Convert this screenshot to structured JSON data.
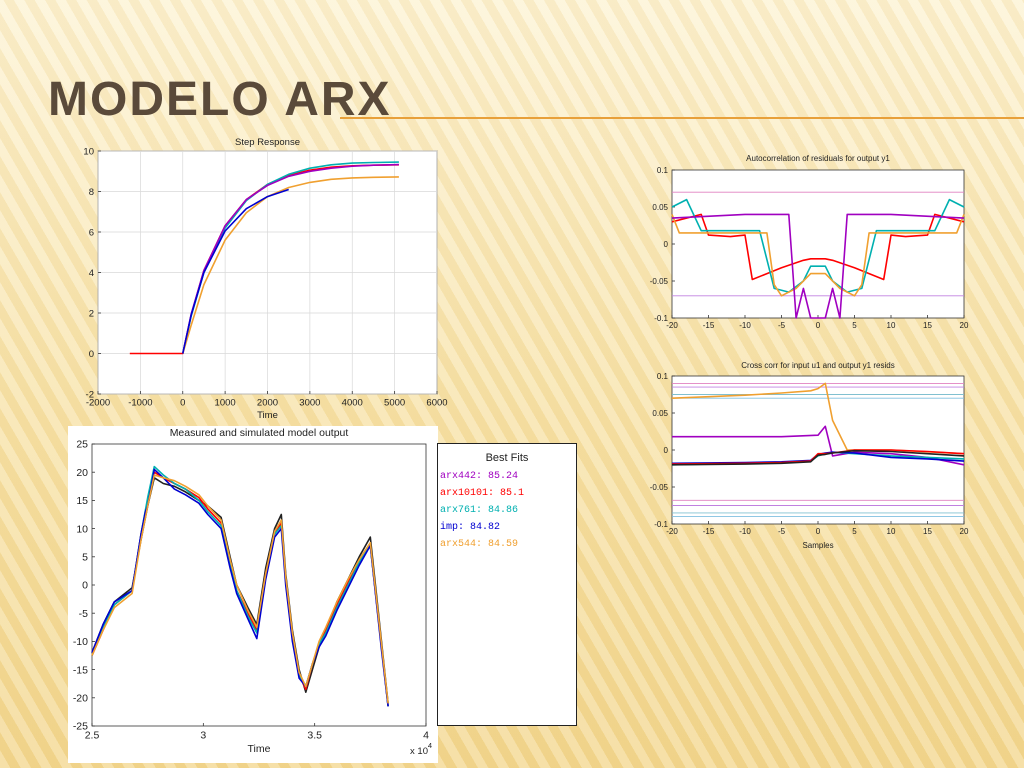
{
  "slide": {
    "title": "MODELO ARX",
    "accent": "#e8a03a"
  },
  "chart_data": [
    {
      "id": "step",
      "type": "line",
      "title": "Step Response",
      "xlabel": "Time",
      "ylabel": "",
      "xlim": [
        -2000,
        6000
      ],
      "ylim": [
        -2,
        10
      ],
      "xticks": [
        -2000,
        -1000,
        0,
        1000,
        2000,
        3000,
        4000,
        5000,
        6000
      ],
      "yticks": [
        -2,
        0,
        2,
        4,
        6,
        8,
        10
      ],
      "grid": true,
      "series": [
        {
          "color": "#ff0000",
          "x": [
            -1250,
            0,
            200,
            500,
            1000,
            1500,
            2000,
            2500,
            3000,
            3500,
            4000,
            4500,
            5100
          ],
          "y": [
            0,
            0,
            1.9,
            4.1,
            6.3,
            7.6,
            8.35,
            8.8,
            9.05,
            9.2,
            9.27,
            9.3,
            9.32
          ]
        },
        {
          "color": "#00b0b0",
          "x": [
            0,
            200,
            500,
            1000,
            1500,
            2000,
            2500,
            3000,
            3500,
            4000,
            4500,
            5100
          ],
          "y": [
            0,
            1.85,
            4.0,
            6.2,
            7.55,
            8.35,
            8.85,
            9.15,
            9.32,
            9.4,
            9.43,
            9.45
          ]
        },
        {
          "color": "#a000c0",
          "x": [
            0,
            200,
            500,
            1000,
            1500,
            2000,
            2500,
            3000,
            3500,
            4000,
            4500,
            5100
          ],
          "y": [
            0,
            1.95,
            4.1,
            6.3,
            7.6,
            8.3,
            8.75,
            9.0,
            9.15,
            9.25,
            9.3,
            9.33
          ]
        },
        {
          "color": "#f0a030",
          "x": [
            0,
            200,
            500,
            1000,
            1500,
            2000,
            2500,
            3000,
            3500,
            4000,
            4500,
            5100
          ],
          "y": [
            0,
            1.4,
            3.4,
            5.6,
            6.95,
            7.75,
            8.2,
            8.45,
            8.6,
            8.67,
            8.7,
            8.72
          ]
        },
        {
          "color": "#0000d0",
          "x": [
            0,
            200,
            500,
            1000,
            1500,
            2000,
            2500
          ],
          "y": [
            0,
            1.9,
            4.0,
            6.05,
            7.15,
            7.75,
            8.1
          ]
        }
      ]
    },
    {
      "id": "autocorr",
      "type": "line",
      "title": "Autocorrelation of residuals for output y1",
      "xlabel": "",
      "ylabel": "",
      "xlim": [
        -20,
        20
      ],
      "ylim": [
        -0.1,
        0.1
      ],
      "xticks": [
        -20,
        -15,
        -10,
        -5,
        0,
        5,
        10,
        15,
        20
      ],
      "yticks": [
        -0.1,
        -0.05,
        0,
        0.05,
        0.1
      ],
      "grid": false,
      "confidence": [
        0.07,
        -0.07
      ],
      "series": [
        {
          "color": "#ff0000",
          "x": [
            -20,
            -18,
            -16,
            -15,
            -12,
            -10,
            -9,
            -5,
            -2,
            -1,
            1,
            2,
            5,
            9,
            10,
            12,
            15,
            16,
            18,
            20
          ],
          "y": [
            0.03,
            0.035,
            0.04,
            0.012,
            0.01,
            0.012,
            -0.048,
            -0.032,
            -0.022,
            -0.02,
            -0.02,
            -0.022,
            -0.032,
            -0.048,
            0.012,
            0.01,
            0.012,
            0.04,
            0.035,
            0.03
          ]
        },
        {
          "color": "#00b0b0",
          "x": [
            -20,
            -18,
            -16,
            -15,
            -10,
            -8,
            -6,
            -4,
            -2,
            -1,
            1,
            2,
            4,
            6,
            8,
            10,
            15,
            16,
            18,
            20
          ],
          "y": [
            0.05,
            0.06,
            0.018,
            0.018,
            0.018,
            0.018,
            -0.06,
            -0.065,
            -0.05,
            -0.03,
            -0.03,
            -0.05,
            -0.065,
            -0.06,
            0.018,
            0.018,
            0.018,
            0.018,
            0.06,
            0.05
          ]
        },
        {
          "color": "#f0a030",
          "x": [
            -20,
            -19,
            -18,
            -15,
            -10,
            -7,
            -6,
            -5,
            -3,
            -1,
            1,
            3,
            5,
            6,
            7,
            10,
            15,
            18,
            19,
            20
          ],
          "y": [
            0.04,
            0.015,
            0.015,
            0.015,
            0.015,
            0.015,
            -0.055,
            -0.07,
            -0.06,
            -0.04,
            -0.04,
            -0.06,
            -0.07,
            -0.055,
            0.015,
            0.015,
            0.015,
            0.015,
            0.015,
            0.04
          ]
        },
        {
          "color": "#a000c0",
          "x": [
            -20,
            -10,
            -4,
            -3,
            -2,
            -1,
            1,
            2,
            3,
            4,
            10,
            20
          ],
          "y": [
            0.035,
            0.04,
            0.04,
            -0.1,
            -0.06,
            -0.1,
            -0.1,
            -0.06,
            -0.1,
            0.04,
            0.04,
            0.035
          ]
        }
      ]
    },
    {
      "id": "crosscorr",
      "type": "line",
      "title": "Cross corr for input u1 and output y1 resids",
      "xlabel": "Samples",
      "ylabel": "",
      "xlim": [
        -20,
        20
      ],
      "ylim": [
        -0.1,
        0.1
      ],
      "xticks": [
        -20,
        -15,
        -10,
        -5,
        0,
        5,
        10,
        15,
        20
      ],
      "yticks": [
        -0.1,
        -0.05,
        0,
        0.05,
        0.1
      ],
      "grid": false,
      "confidence": [
        0.09,
        0.085,
        0.075,
        0.07,
        -0.068,
        -0.075,
        -0.085,
        -0.09
      ],
      "series": [
        {
          "color": "#f0a030",
          "x": [
            -20,
            -10,
            -5,
            -1,
            0,
            1,
            2,
            4,
            10,
            20
          ],
          "y": [
            0.07,
            0.074,
            0.077,
            0.08,
            0.083,
            0.09,
            0.04,
            0.0,
            0.0,
            -0.005
          ]
        },
        {
          "color": "#a000c0",
          "x": [
            -20,
            -15,
            -10,
            -5,
            0,
            1,
            2,
            5,
            10,
            15,
            20
          ],
          "y": [
            0.018,
            0.018,
            0.018,
            0.018,
            0.02,
            0.032,
            -0.008,
            -0.003,
            -0.005,
            -0.01,
            -0.02
          ]
        },
        {
          "color": "#00b0b0",
          "x": [
            -20,
            -10,
            -5,
            -1,
            0,
            1,
            2,
            5,
            10,
            15,
            20
          ],
          "y": [
            -0.02,
            -0.018,
            -0.017,
            -0.015,
            -0.008,
            -0.005,
            -0.003,
            -0.005,
            -0.008,
            -0.01,
            -0.012
          ]
        },
        {
          "color": "#0000d0",
          "x": [
            -20,
            -10,
            -5,
            -1,
            0,
            1,
            2,
            5,
            10,
            15,
            20
          ],
          "y": [
            -0.018,
            -0.017,
            -0.016,
            -0.014,
            -0.006,
            -0.004,
            -0.003,
            -0.004,
            -0.01,
            -0.012,
            -0.015
          ]
        },
        {
          "color": "#ff0000",
          "x": [
            -20,
            -10,
            -5,
            -1,
            0,
            1,
            2,
            5,
            10,
            15,
            20
          ],
          "y": [
            -0.019,
            -0.018,
            -0.017,
            -0.015,
            -0.005,
            -0.005,
            -0.004,
            0.0,
            0.0,
            -0.002,
            -0.005
          ]
        },
        {
          "color": "#222222",
          "x": [
            -20,
            -10,
            -5,
            -1,
            0,
            1,
            2,
            5,
            10,
            15,
            20
          ],
          "y": [
            -0.02,
            -0.019,
            -0.018,
            -0.016,
            -0.007,
            -0.006,
            -0.004,
            -0.001,
            -0.002,
            -0.005,
            -0.008
          ]
        }
      ]
    },
    {
      "id": "measured",
      "type": "line",
      "title": "Measured and simulated model output",
      "xlabel": "Time",
      "ylabel": "",
      "xlim": [
        25000,
        40000
      ],
      "ylim": [
        -25,
        25
      ],
      "xticks": [
        25000,
        30000,
        35000,
        40000
      ],
      "xtick_labels": [
        "2.5",
        "3",
        "3.5",
        "4"
      ],
      "yticks": [
        -25,
        -20,
        -15,
        -10,
        -5,
        0,
        5,
        10,
        15,
        20,
        25
      ],
      "grid": false,
      "x_multiplier": "x 10",
      "x_multiplier_exp": "4",
      "legend": {
        "title": "Best Fits",
        "entries": [
          {
            "label": "arx442: 85.24",
            "color": "#a000c0"
          },
          {
            "label": "arx10101: 85.1",
            "color": "#ff0000"
          },
          {
            "label": "arx761: 84.86",
            "color": "#00b0b0"
          },
          {
            "label": "imp: 84.82",
            "color": "#0000d0"
          },
          {
            "label": "arx544: 84.59",
            "color": "#f0a030"
          }
        ]
      },
      "series": [
        {
          "color": "#222222",
          "x": [
            25000,
            25500,
            26000,
            26800,
            27200,
            27500,
            27800,
            28200,
            28700,
            29200,
            29800,
            30200,
            30800,
            31200,
            31500,
            32000,
            32400,
            32800,
            33200,
            33500,
            33700,
            34000,
            34300,
            34600,
            34900,
            35200,
            35500,
            36000,
            36500,
            37000,
            37500,
            38000,
            38300
          ],
          "y": [
            -12,
            -7,
            -3,
            -0.5,
            8,
            14,
            19,
            18,
            17.5,
            16.5,
            15,
            14,
            12,
            5,
            0,
            -4,
            -7,
            3,
            10,
            12.5,
            2,
            -8,
            -15,
            -19,
            -15,
            -11,
            -8,
            -3,
            1,
            5,
            8.5,
            -10,
            -21
          ]
        },
        {
          "color": "#ff0000",
          "x": [
            25000,
            25500,
            26000,
            26800,
            27200,
            27500,
            27800,
            28200,
            28700,
            29200,
            29800,
            30200,
            30800,
            31200,
            31500,
            32000,
            32400,
            32800,
            33200,
            33500,
            33700,
            34000,
            34300,
            34600,
            34900,
            35200,
            35500,
            36000,
            36500,
            37000,
            37500,
            38000,
            38300
          ],
          "y": [
            -12.5,
            -8,
            -3.5,
            -1,
            9,
            15,
            20,
            19,
            18,
            17,
            15.5,
            13.5,
            11,
            4,
            -1,
            -5,
            -8,
            2,
            9,
            11,
            1,
            -9,
            -16,
            -18.5,
            -14,
            -10.5,
            -8,
            -3.5,
            0.5,
            4,
            7,
            -11,
            -21.5
          ]
        },
        {
          "color": "#00b0b0",
          "x": [
            25000,
            25500,
            26000,
            26800,
            27200,
            27500,
            27800,
            28200,
            28700,
            29200,
            29800,
            30200,
            30800,
            31200,
            31500,
            32000,
            32400,
            32800,
            33200,
            33500,
            33700,
            34000,
            34300,
            34600,
            34900,
            35200,
            35500,
            36000,
            36500,
            37000,
            37500,
            38000,
            38300
          ],
          "y": [
            -12.5,
            -7.5,
            -3.5,
            -1,
            9,
            15.5,
            21,
            19.5,
            18,
            17,
            15,
            13,
            10.5,
            3.5,
            -1,
            -5.5,
            -8.5,
            1.5,
            9,
            10.5,
            1,
            -9.5,
            -16,
            -18,
            -14,
            -10.5,
            -8.5,
            -4,
            0,
            4,
            7,
            -11,
            -21.5
          ]
        },
        {
          "color": "#0000d0",
          "x": [
            25000,
            25500,
            26000,
            26800,
            27200,
            27400,
            27500,
            27800,
            28200,
            28700,
            29200,
            29800,
            30200,
            30800,
            31200,
            31500,
            32000,
            32400,
            32800,
            33200,
            33500,
            33700,
            34000,
            34300,
            34600,
            34900,
            35200,
            35500,
            36000,
            36500,
            37000,
            37500,
            38000,
            38300
          ],
          "y": [
            -12,
            -7,
            -3,
            -1,
            9,
            13,
            14,
            20.5,
            19,
            17,
            16,
            14.5,
            12.5,
            10,
            3,
            -1.5,
            -6,
            -9.5,
            1,
            8.5,
            10,
            0,
            -10,
            -16.5,
            -18,
            -14,
            -11,
            -9,
            -4.5,
            -0.5,
            3.5,
            7,
            -11.5,
            -21.5
          ]
        },
        {
          "color": "#f0a030",
          "x": [
            25000,
            25500,
            26000,
            26800,
            27200,
            27500,
            27800,
            28200,
            28700,
            29200,
            29800,
            30200,
            30800,
            31200,
            31500,
            32000,
            32400,
            32800,
            33200,
            33500,
            33700,
            34000,
            34300,
            34600,
            34900,
            35200,
            35500,
            36000,
            36500,
            37000,
            37500,
            38000,
            38300
          ],
          "y": [
            -12.5,
            -8,
            -4,
            -1.5,
            8,
            14,
            19.5,
            19,
            18.5,
            17.5,
            16,
            14,
            11.5,
            4.5,
            0,
            -4.5,
            -7.5,
            2,
            9.5,
            11.5,
            1.5,
            -8.5,
            -15.5,
            -18,
            -14,
            -10,
            -7.5,
            -3,
            1,
            4.5,
            7.5,
            -10.5,
            -21
          ]
        }
      ]
    }
  ]
}
